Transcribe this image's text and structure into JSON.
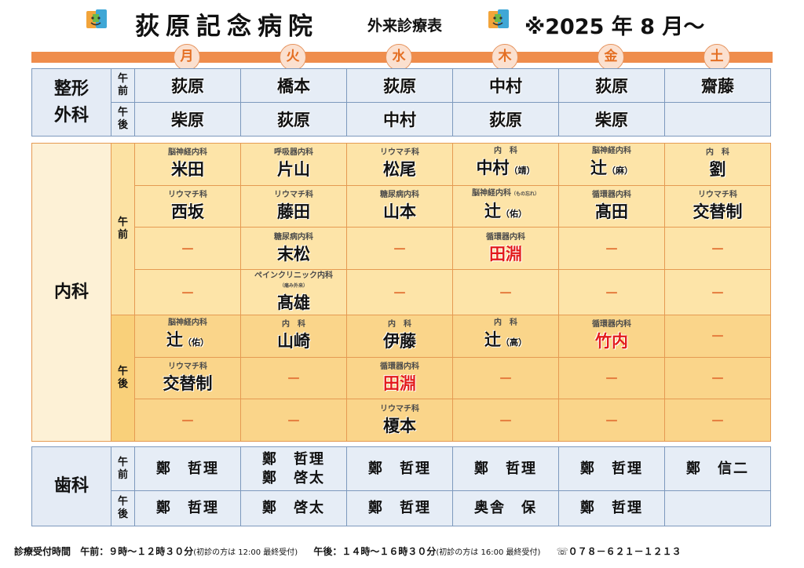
{
  "header": {
    "hospital": "荻原記念病院",
    "subtitle": "外来診療表",
    "date": "※2025 年 8 月～"
  },
  "days": [
    "月",
    "火",
    "水",
    "木",
    "金",
    "土"
  ],
  "orthopedics": {
    "dept": [
      "整形",
      "外科"
    ],
    "am": [
      "午",
      "前"
    ],
    "pm": [
      "午",
      "後"
    ],
    "am_doctors": [
      "荻原",
      "橋本",
      "荻原",
      "中村",
      "荻原",
      "齋藤"
    ],
    "pm_doctors": [
      "柴原",
      "荻原",
      "中村",
      "荻原",
      "柴原",
      ""
    ]
  },
  "internal": {
    "dept": "内科",
    "am": [
      "午",
      "前"
    ],
    "pm": [
      "午",
      "後"
    ],
    "rows": [
      [
        {
          "spec": "脳神経内科",
          "name": "米田"
        },
        {
          "spec": "呼吸器内科",
          "name": "片山"
        },
        {
          "spec": "リウマチ科",
          "name": "松尾"
        },
        {
          "spec": "内　科",
          "name": "中村",
          "suffix": "（靖）"
        },
        {
          "spec": "脳神経内科",
          "name": "辻",
          "suffix": "（麻）"
        },
        {
          "spec": "内　科",
          "name": "劉"
        }
      ],
      [
        {
          "spec": "リウマチ科",
          "name": "西坂"
        },
        {
          "spec": "リウマチ科",
          "name": "藤田"
        },
        {
          "spec": "糖尿病内科",
          "name": "山本"
        },
        {
          "spec": "脳神経内科",
          "spec_note": "（もの忘れ）",
          "name": "辻",
          "suffix": "（佑）"
        },
        {
          "spec": "循環器内科",
          "name": "髙田"
        },
        {
          "spec": "リウマチ科",
          "name": "交替制"
        }
      ],
      [
        {
          "dash": "－"
        },
        {
          "spec": "糖尿病内科",
          "name": "末松"
        },
        {
          "dash": "－"
        },
        {
          "spec": "循環器内科",
          "name": "田淵",
          "red": true
        },
        {
          "dash": "－"
        },
        {
          "dash": "－"
        }
      ],
      [
        {
          "dash": "－"
        },
        {
          "spec": "ペインクリニック内科",
          "spec_note": "（痛み外来）",
          "name": "髙雄"
        },
        {
          "dash": "－"
        },
        {
          "dash": "－"
        },
        {
          "dash": "－"
        },
        {
          "dash": "－"
        }
      ],
      [
        {
          "spec": "脳神経内科",
          "name": "辻",
          "suffix": "（佑）"
        },
        {
          "spec": "内　科",
          "name": "山崎"
        },
        {
          "spec": "内　科",
          "name": "伊藤"
        },
        {
          "spec": "内　科",
          "name": "辻",
          "suffix": "（高）"
        },
        {
          "spec": "循環器内科",
          "name": "竹内",
          "red": true
        },
        {
          "dash": "－"
        }
      ],
      [
        {
          "spec": "リウマチ科",
          "name": "交替制"
        },
        {
          "dash": "－"
        },
        {
          "spec": "循環器内科",
          "name": "田淵",
          "red": true
        },
        {
          "dash": "－"
        },
        {
          "dash": "－"
        },
        {
          "dash": "－"
        }
      ],
      [
        {
          "dash": "－"
        },
        {
          "dash": "－"
        },
        {
          "spec": "リウマチ科",
          "name": "榎本"
        },
        {
          "dash": "－"
        },
        {
          "dash": "－"
        },
        {
          "dash": "－"
        }
      ]
    ]
  },
  "dental": {
    "dept": "歯科",
    "am": [
      "午",
      "前"
    ],
    "pm": [
      "午",
      "後"
    ],
    "am_doctors": [
      [
        "鄭　哲理"
      ],
      [
        "鄭　哲理",
        "鄭　啓太"
      ],
      [
        "鄭　哲理"
      ],
      [
        "鄭　哲理"
      ],
      [
        "鄭　哲理"
      ],
      [
        "鄭　信二"
      ]
    ],
    "pm_doctors": [
      [
        "鄭　哲理"
      ],
      [
        "鄭　啓太"
      ],
      [
        "鄭　哲理"
      ],
      [
        "奥舎　保"
      ],
      [
        "鄭　哲理"
      ],
      []
    ]
  },
  "footer": {
    "label": "診療受付時間",
    "am": "午前：９時～１２時３０分",
    "am_note": "(初診の方は 12:00 最終受付)",
    "pm": "午後：１４時～１６時３０分",
    "pm_note": "(初診の方は 16:00 最終受付)",
    "phone": "☏０７８－６２１－１２１３"
  },
  "colors": {
    "accent_orange": "#ef8d4c",
    "blue_border": "#7d99bd",
    "orange_border": "#e59a52",
    "red_text": "#e31b1b"
  },
  "icons": [
    "hospital-logo-icon",
    "phone-icon"
  ]
}
